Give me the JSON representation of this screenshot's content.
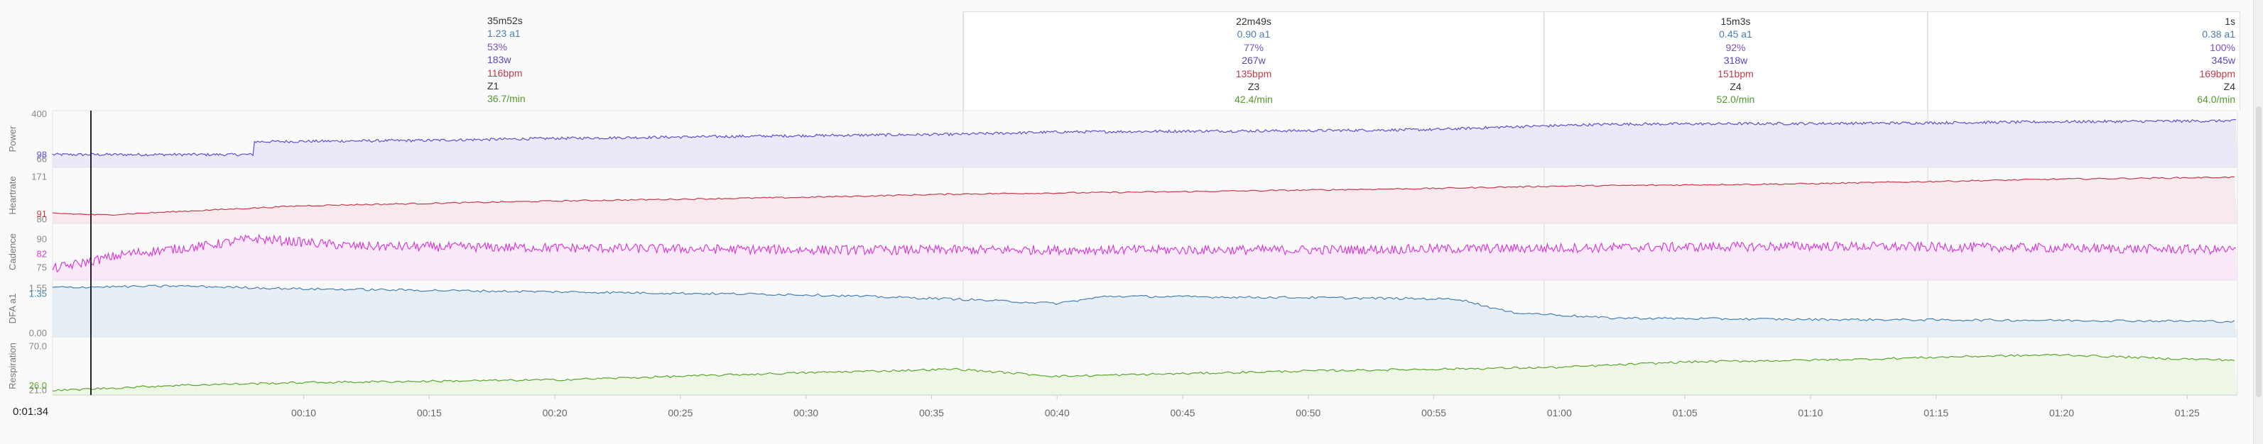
{
  "cursor_time": "0:01:34",
  "panels": [
    {
      "name": "Power",
      "color": "#5b4fd0",
      "fill": "#ebe8f7",
      "ticks": [
        "400",
        "66"
      ],
      "current": "98",
      "current_color": "#6b4fd8"
    },
    {
      "name": "Heartrate",
      "color": "#c8384a",
      "fill": "#f8eaec",
      "ticks": [
        "171",
        "80"
      ],
      "current": "91",
      "current_color": "#c8384a"
    },
    {
      "name": "Cadence",
      "color": "#d43ed6",
      "fill": "#f9e8f8",
      "ticks": [
        "90",
        "75"
      ],
      "current": "82",
      "current_color": "#d43ed6"
    },
    {
      "name": "DFA a1",
      "color": "#4a7fb2",
      "fill": "#e6eef6",
      "ticks": [
        "1.55",
        "0.00"
      ],
      "current": "1.35",
      "current_color": "#4a7fb2"
    },
    {
      "name": "Respiration",
      "color": "#5aa52c",
      "fill": "#eef6e6",
      "ticks": [
        "70.0",
        "21.0"
      ],
      "current": "26.0",
      "current_color": "#5aa52c"
    }
  ],
  "zones": [
    {
      "duration": "35m52s",
      "dfa": "1.23 a1",
      "pct": "53%",
      "watts": "183w",
      "bpm": "116bpm",
      "zone": "Z1",
      "resp": "36.7/min"
    },
    {
      "duration": "22m49s",
      "dfa": "0.90 a1",
      "pct": "77%",
      "watts": "267w",
      "bpm": "135bpm",
      "zone": "Z3",
      "resp": "42.4/min"
    },
    {
      "duration": "15m3s",
      "dfa": "0.45 a1",
      "pct": "92%",
      "watts": "318w",
      "bpm": "151bpm",
      "zone": "Z4",
      "resp": "52.0/min"
    },
    {
      "duration": "1s",
      "dfa": "0.38 a1",
      "pct": "100%",
      "watts": "345w",
      "bpm": "169bpm",
      "zone": "Z4",
      "resp": "64.0/min"
    }
  ],
  "time_axis": [
    "00:10",
    "00:15",
    "00:20",
    "00:25",
    "00:30",
    "00:35",
    "00:40",
    "00:45",
    "00:50",
    "00:55",
    "01:00",
    "01:05",
    "01:10",
    "01:15",
    "01:20",
    "01:25"
  ],
  "series_profile": {
    "power": [
      [
        0,
        95
      ],
      [
        8,
        95
      ],
      [
        8,
        190
      ],
      [
        15,
        200
      ],
      [
        20,
        215
      ],
      [
        25,
        225
      ],
      [
        30,
        235
      ],
      [
        36,
        245
      ],
      [
        40,
        262
      ],
      [
        45,
        268
      ],
      [
        50,
        272
      ],
      [
        55,
        280
      ],
      [
        58,
        300
      ],
      [
        62,
        320
      ],
      [
        70,
        325
      ],
      [
        75,
        330
      ],
      [
        80,
        338
      ],
      [
        87,
        345
      ]
    ],
    "hr": [
      [
        0,
        92
      ],
      [
        2,
        88
      ],
      [
        10,
        108
      ],
      [
        20,
        118
      ],
      [
        30,
        126
      ],
      [
        36,
        133
      ],
      [
        45,
        138
      ],
      [
        55,
        145
      ],
      [
        60,
        150
      ],
      [
        70,
        155
      ],
      [
        80,
        165
      ],
      [
        87,
        169
      ]
    ],
    "cadence": [
      [
        0,
        74
      ],
      [
        3,
        82
      ],
      [
        6,
        86
      ],
      [
        8,
        90
      ],
      [
        12,
        86
      ],
      [
        30,
        84
      ],
      [
        36,
        84
      ],
      [
        50,
        84
      ],
      [
        60,
        85
      ],
      [
        70,
        86
      ],
      [
        80,
        85
      ],
      [
        87,
        84
      ]
    ],
    "dfa": [
      [
        0,
        1.55
      ],
      [
        5,
        1.6
      ],
      [
        10,
        1.5
      ],
      [
        20,
        1.4
      ],
      [
        30,
        1.3
      ],
      [
        36,
        1.15
      ],
      [
        40,
        1.0
      ],
      [
        42,
        1.25
      ],
      [
        50,
        1.2
      ],
      [
        56,
        1.15
      ],
      [
        58,
        0.7
      ],
      [
        62,
        0.5
      ],
      [
        70,
        0.45
      ],
      [
        80,
        0.42
      ],
      [
        87,
        0.38
      ]
    ],
    "resp": [
      [
        0,
        20
      ],
      [
        5,
        26
      ],
      [
        10,
        29
      ],
      [
        20,
        32
      ],
      [
        30,
        40
      ],
      [
        36,
        44
      ],
      [
        40,
        36
      ],
      [
        50,
        42
      ],
      [
        60,
        46
      ],
      [
        65,
        52
      ],
      [
        72,
        55
      ],
      [
        76,
        58
      ],
      [
        80,
        60
      ],
      [
        84,
        56
      ],
      [
        87,
        54
      ]
    ]
  }
}
